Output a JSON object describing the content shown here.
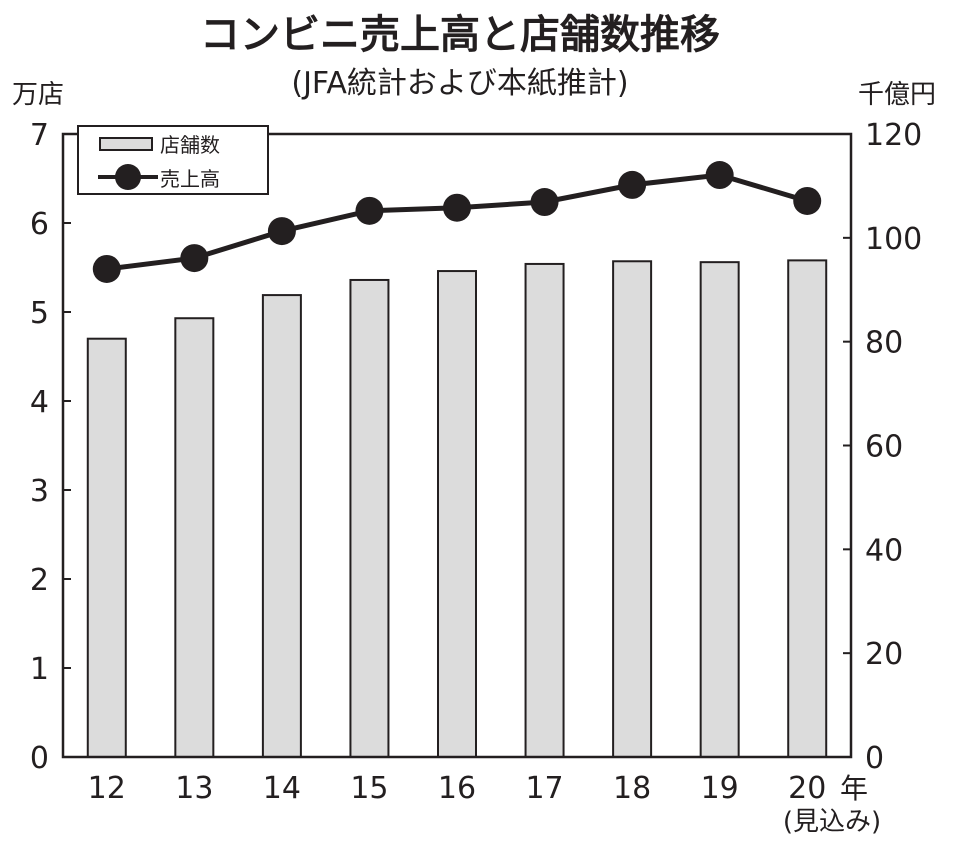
{
  "chart_data": {
    "type": "bar+line",
    "title": "コンビニ売上高と店舗数推移",
    "subtitle": "(JFA統計および本紙推計)",
    "left_axis": {
      "unit_label": "万店",
      "ylim": [
        0,
        7
      ],
      "ticks": [
        "0",
        "1",
        "2",
        "3",
        "4",
        "5",
        "6",
        "7"
      ]
    },
    "right_axis": {
      "unit_label": "千億円",
      "ylim": [
        0,
        120
      ],
      "ticks": [
        "0",
        "20",
        "40",
        "60",
        "80",
        "100",
        "120"
      ]
    },
    "x_unit_label": "年",
    "categories": [
      "12",
      "13",
      "14",
      "15",
      "16",
      "17",
      "18",
      "19",
      "20"
    ],
    "category_note": "(見込み)",
    "series": [
      {
        "name": "店舗数",
        "type": "bar",
        "axis": "left",
        "values": [
          4.7,
          4.93,
          5.19,
          5.36,
          5.46,
          5.54,
          5.57,
          5.56,
          5.58
        ],
        "color": "#dcdcdc"
      },
      {
        "name": "売上高",
        "type": "line",
        "axis": "right",
        "values": [
          94.0,
          96.1,
          101.3,
          105.2,
          105.8,
          106.9,
          110.2,
          112.1,
          107.1
        ],
        "color": "#231f20"
      }
    ],
    "legend": "top-left",
    "grid": false
  }
}
